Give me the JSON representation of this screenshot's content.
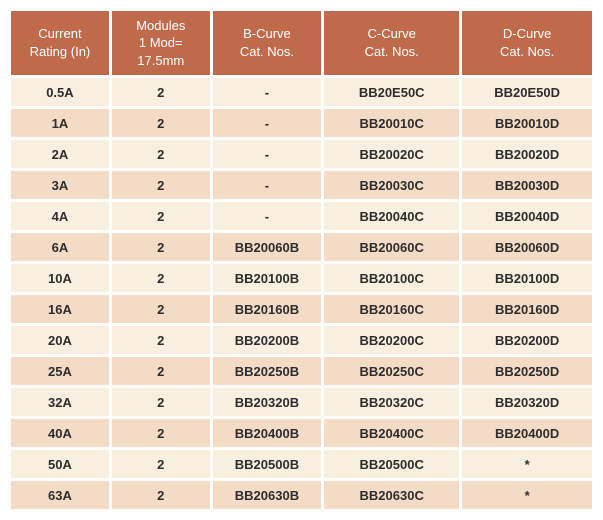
{
  "colors": {
    "page_bg": "#ffffff",
    "header_bg": "#c06a4c",
    "header_text": "#ffffff",
    "row_light_bg": "#f9efe0",
    "row_dark_bg": "#f4dbc6",
    "body_text": "#2d2d2d"
  },
  "table": {
    "headers": [
      "Current\nRating (In)",
      "Modules\n1 Mod=\n17.5mm",
      "B-Curve\nCat. Nos.",
      "C-Curve\nCat. Nos.",
      "D-Curve\nCat. Nos."
    ],
    "rows": [
      [
        "0.5A",
        "2",
        "-",
        "BB20E50C",
        "BB20E50D"
      ],
      [
        "1A",
        "2",
        "-",
        "BB20010C",
        "BB20010D"
      ],
      [
        "2A",
        "2",
        "-",
        "BB20020C",
        "BB20020D"
      ],
      [
        "3A",
        "2",
        "-",
        "BB20030C",
        "BB20030D"
      ],
      [
        "4A",
        "2",
        "-",
        "BB20040C",
        "BB20040D"
      ],
      [
        "6A",
        "2",
        "BB20060B",
        "BB20060C",
        "BB20060D"
      ],
      [
        "10A",
        "2",
        "BB20100B",
        "BB20100C",
        "BB20100D"
      ],
      [
        "16A",
        "2",
        "BB20160B",
        "BB20160C",
        "BB20160D"
      ],
      [
        "20A",
        "2",
        "BB20200B",
        "BB20200C",
        "BB20200D"
      ],
      [
        "25A",
        "2",
        "BB20250B",
        "BB20250C",
        "BB20250D"
      ],
      [
        "32A",
        "2",
        "BB20320B",
        "BB20320C",
        "BB20320D"
      ],
      [
        "40A",
        "2",
        "BB20400B",
        "BB20400C",
        "BB20400D"
      ],
      [
        "50A",
        "2",
        "BB20500B",
        "BB20500C",
        "*"
      ],
      [
        "63A",
        "2",
        "BB20630B",
        "BB20630C",
        "*"
      ]
    ]
  }
}
